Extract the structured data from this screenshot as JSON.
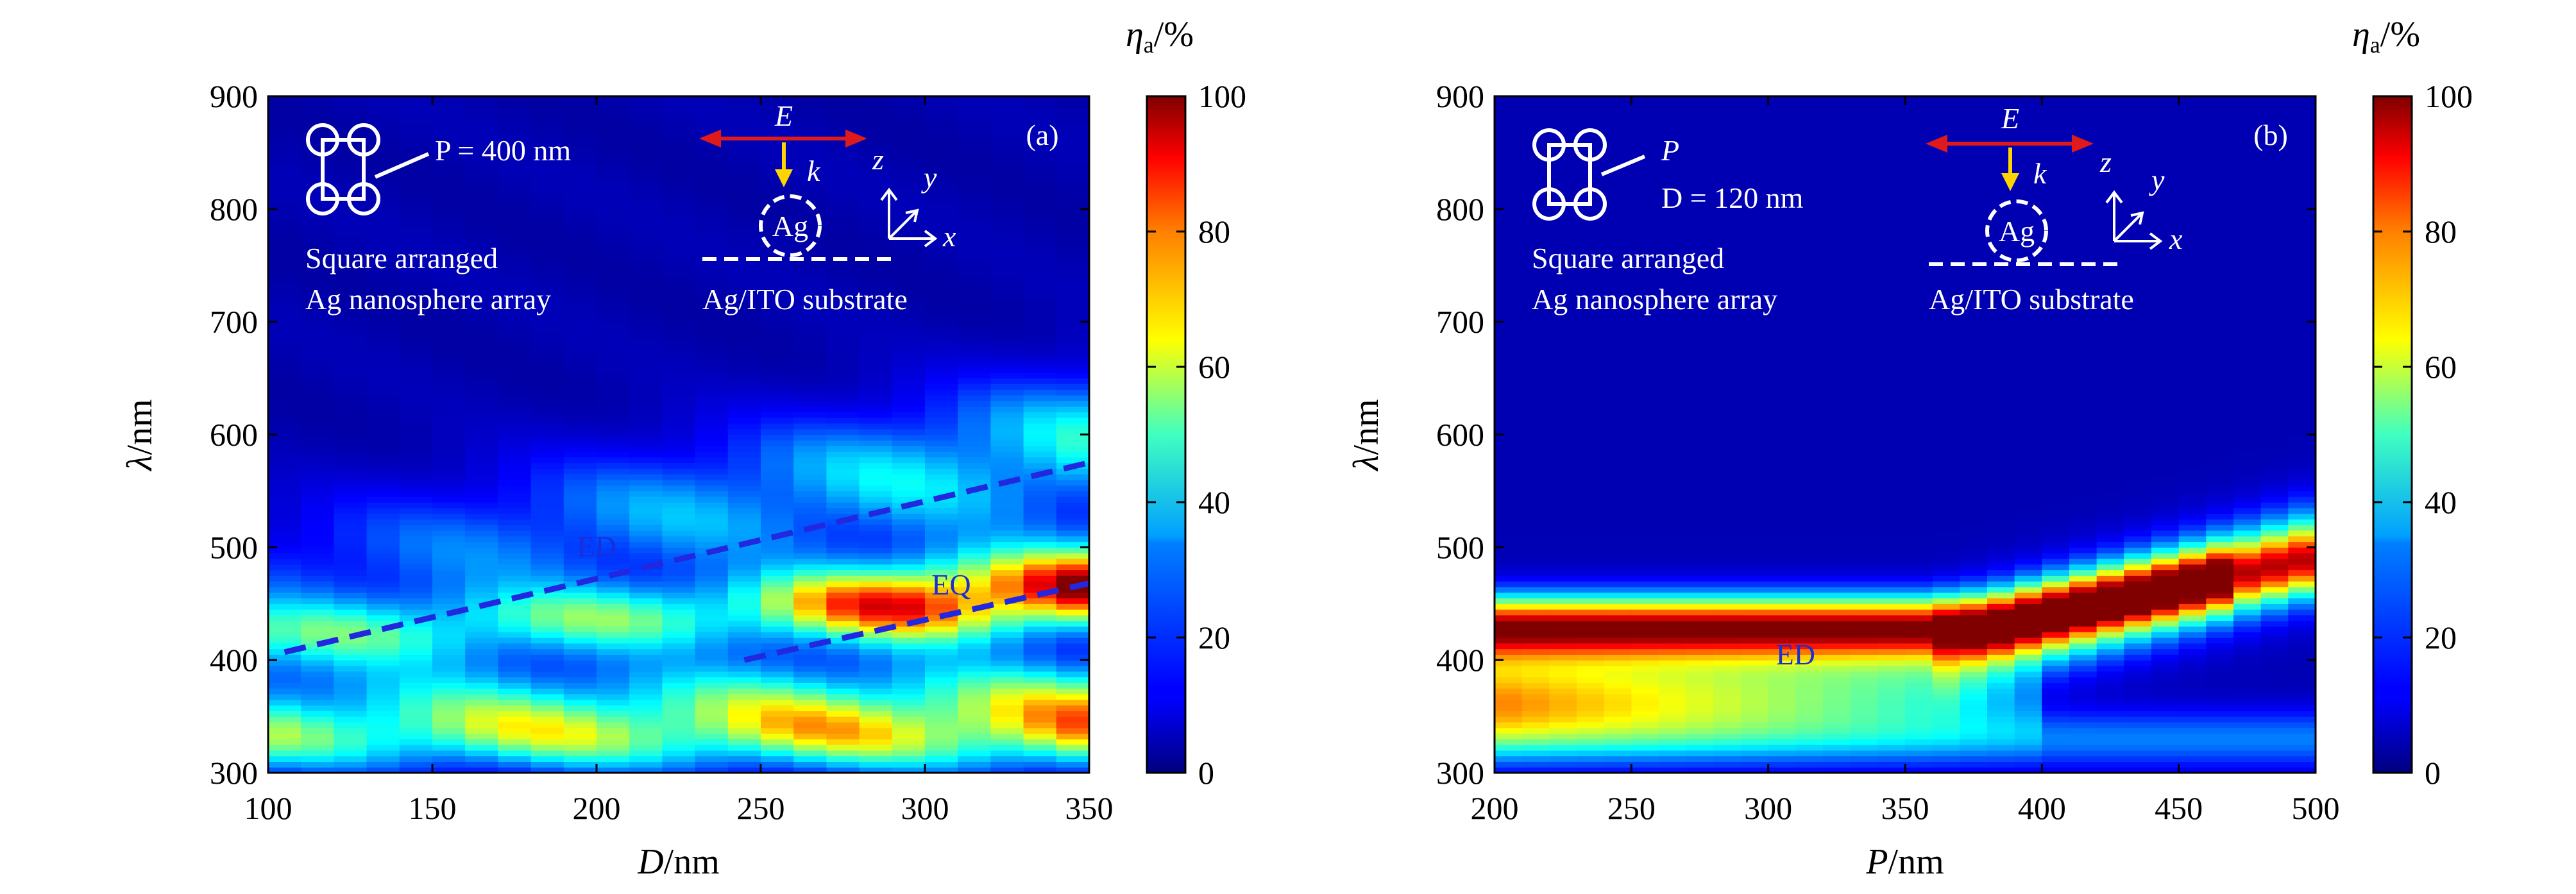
{
  "figure": {
    "colormap": "jet",
    "overlay_color": "#ffffff",
    "mode_line_color": "#2228e0",
    "mode_label_color": "#1a2fd6",
    "efield_arrow_color": "#e01a1a",
    "kvector_arrow_color": "#ffd400"
  },
  "chart_data": [
    {
      "type": "heatmap",
      "panel_label": "(a)",
      "xlabel_var": "D",
      "xlabel_unit": "/nm",
      "ylabel_var": "λ",
      "ylabel_unit": "/nm",
      "xlim": [
        100,
        350
      ],
      "ylim": [
        300,
        900
      ],
      "xticks": [
        "100",
        "150",
        "200",
        "250",
        "300",
        "350"
      ],
      "yticks": [
        "300",
        "400",
        "500",
        "600",
        "700",
        "800",
        "900"
      ],
      "colorbar": {
        "label_var": "η",
        "label_sub": "a",
        "label_unit": "/%",
        "range": [
          0,
          100
        ],
        "ticks": [
          "0",
          "20",
          "40",
          "60",
          "80",
          "100"
        ]
      },
      "annotations": {
        "param": "P = 400 nm",
        "line1": "Square arranged",
        "line2": "Ag nanosphere array",
        "substrate": "Ag/ITO substrate",
        "sphere_label": "Ag",
        "E_label": "E",
        "k_label": "k",
        "axis_x": "x",
        "axis_y": "y",
        "axis_z": "z"
      },
      "modes": [
        {
          "name": "ED",
          "from": [
            105,
            407
          ],
          "to": [
            350,
            575
          ],
          "label_at": [
            200,
            492
          ]
        },
        {
          "name": "EQ",
          "from": [
            245,
            400
          ],
          "to": [
            350,
            468
          ],
          "label_at": [
            308,
            458
          ]
        }
      ]
    },
    {
      "type": "heatmap",
      "panel_label": "(b)",
      "xlabel_var": "P",
      "xlabel_unit": "/nm",
      "ylabel_var": "λ",
      "ylabel_unit": "/nm",
      "xlim": [
        200,
        500
      ],
      "ylim": [
        300,
        900
      ],
      "xticks": [
        "200",
        "250",
        "300",
        "350",
        "400",
        "450",
        "500"
      ],
      "yticks": [
        "300",
        "400",
        "500",
        "600",
        "700",
        "800",
        "900"
      ],
      "colorbar": {
        "label_var": "η",
        "label_sub": "a",
        "label_unit": "/%",
        "range": [
          0,
          100
        ],
        "ticks": [
          "0",
          "20",
          "40",
          "60",
          "80",
          "100"
        ]
      },
      "annotations": {
        "param_p": "P",
        "param_d": "D = 120 nm",
        "line1": "Square arranged",
        "line2": "Ag nanosphere array",
        "substrate": "Ag/ITO substrate",
        "sphere_label": "Ag",
        "E_label": "E",
        "k_label": "k",
        "axis_x": "x",
        "axis_y": "y",
        "axis_z": "z"
      },
      "modes": [
        {
          "name": "ED",
          "label_at": [
            310,
            396
          ]
        }
      ]
    }
  ]
}
